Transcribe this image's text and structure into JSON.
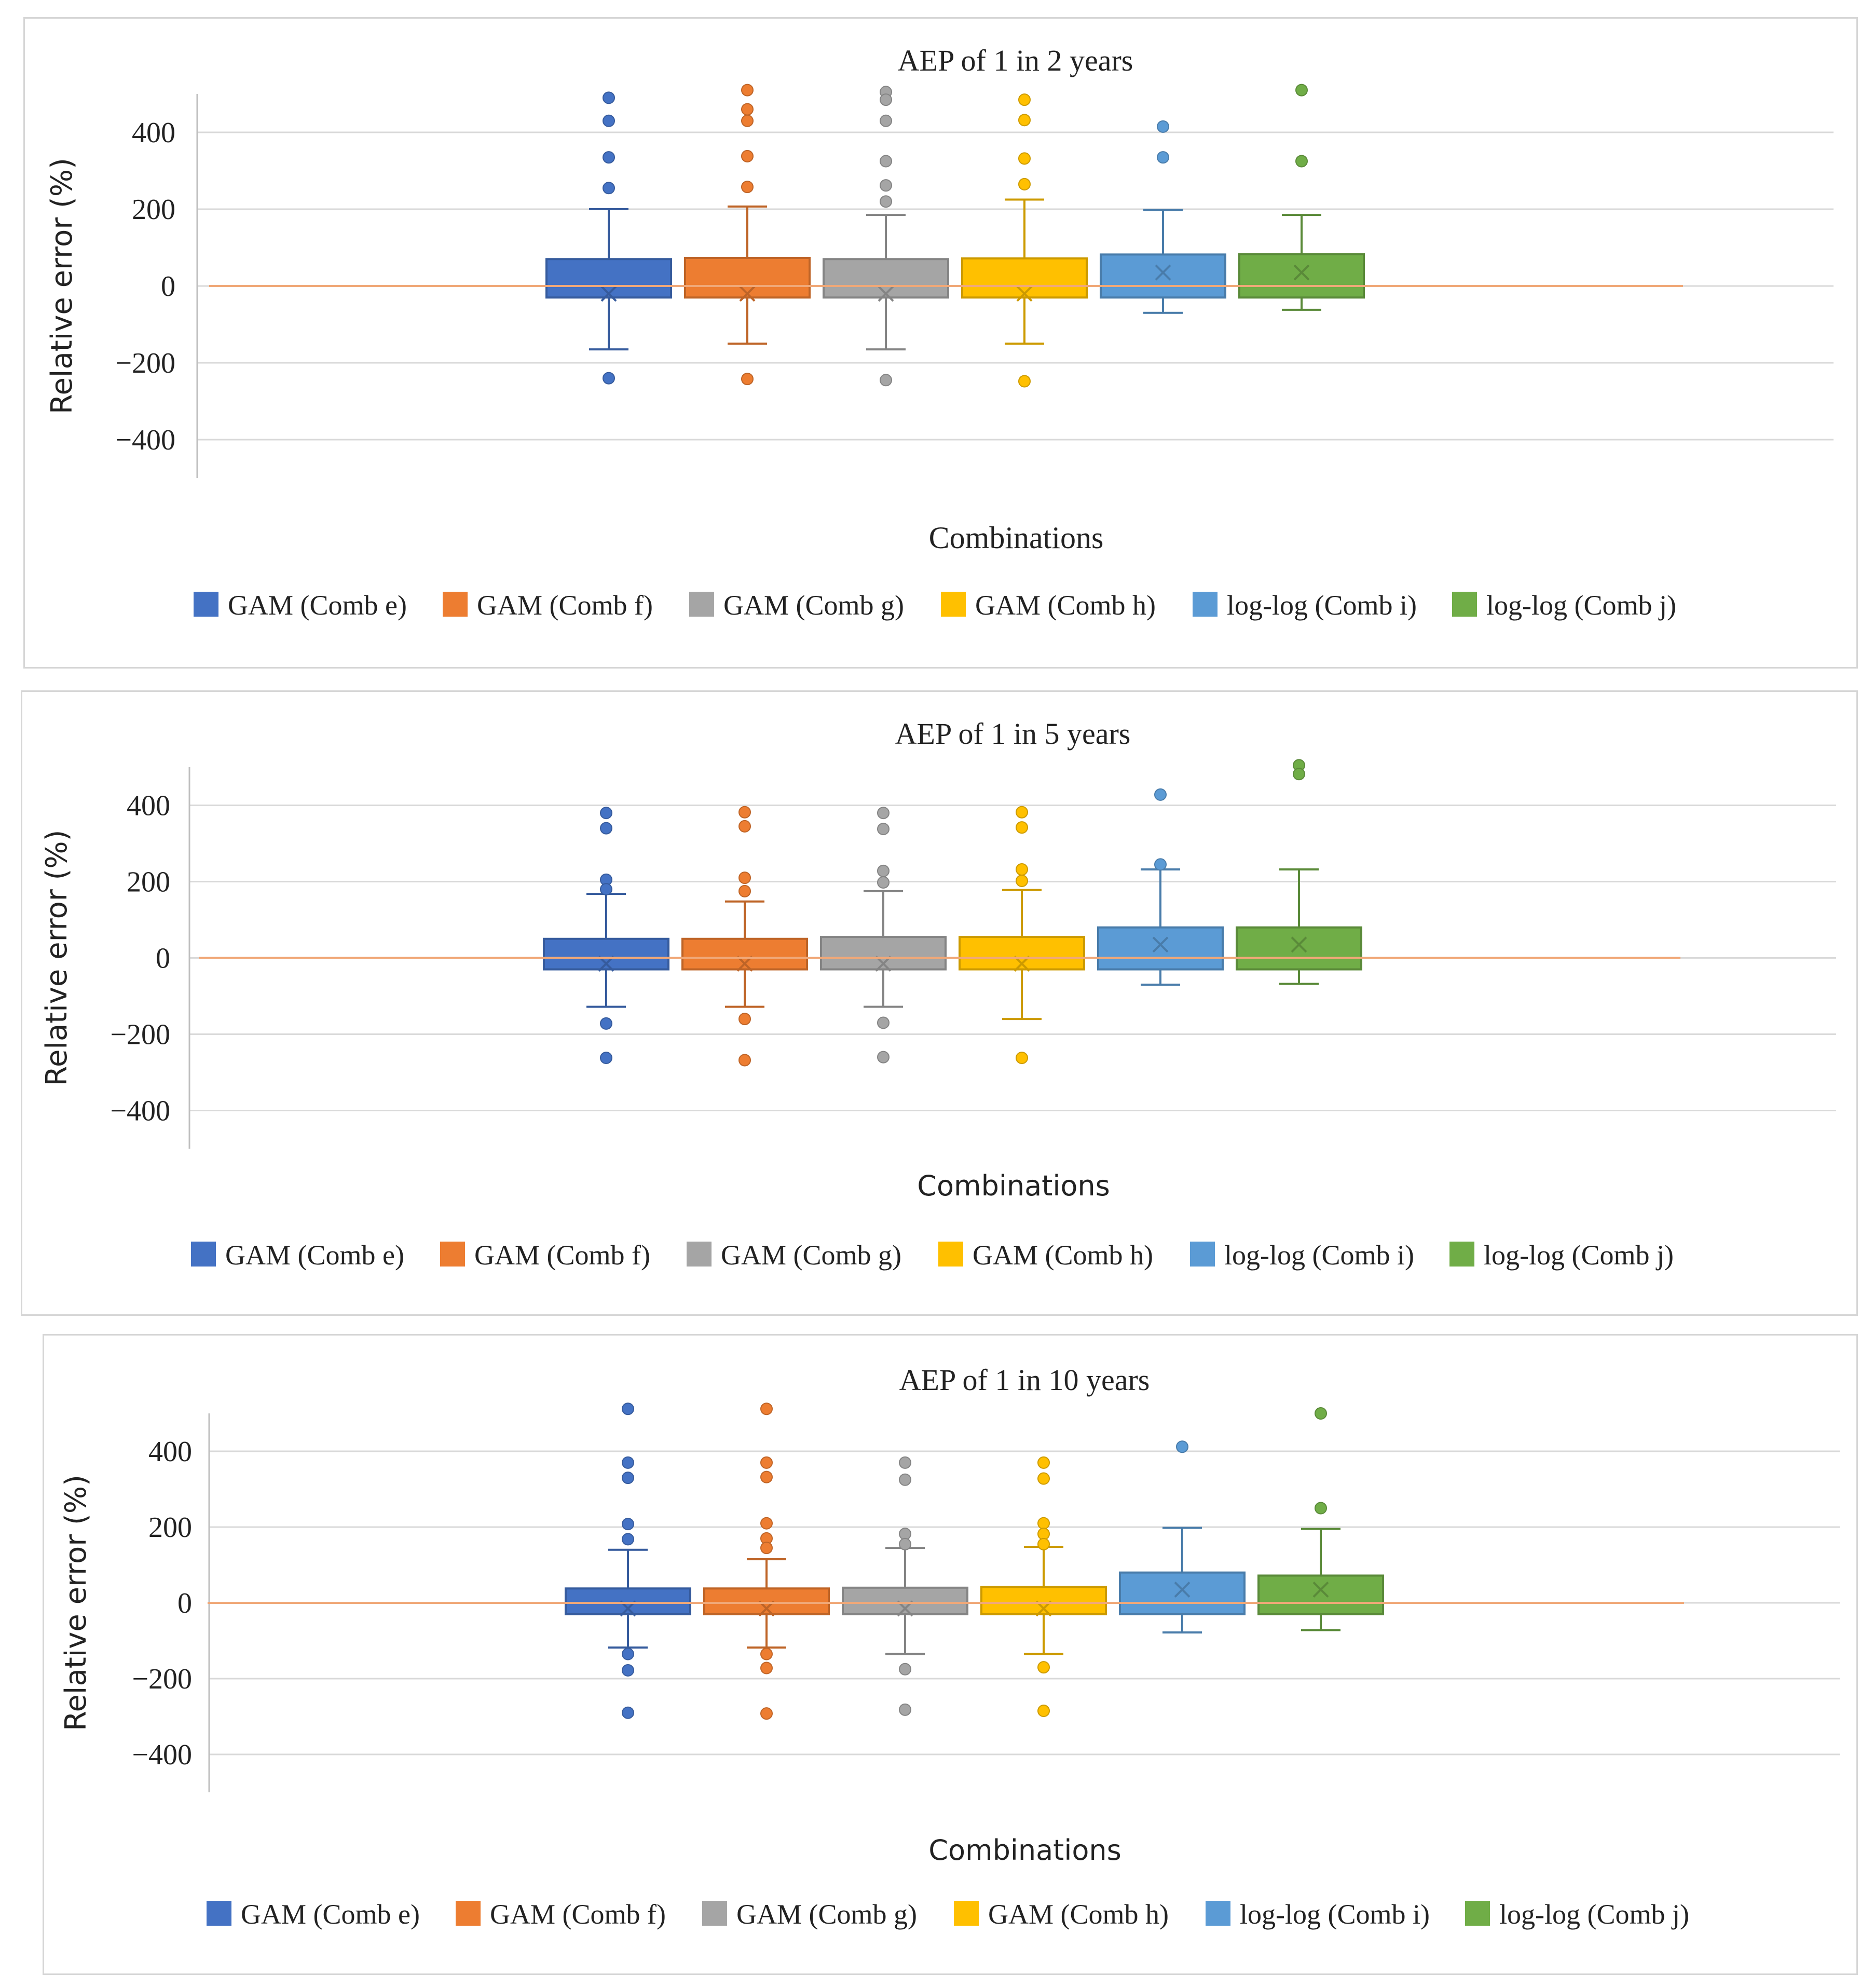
{
  "chart_data": [
    {
      "type": "box",
      "title": "AEP of 1 in 2 years",
      "xlabel": "Combinations",
      "ylabel": "Relative error (%)",
      "ylim": [
        -500,
        500
      ],
      "yticks": [
        400,
        200,
        0,
        -200,
        -400
      ],
      "ytick_labels": [
        "400",
        "200",
        "0",
        "−200",
        "−400"
      ],
      "legend_position": "bottom",
      "reference_line": 0,
      "series": [
        {
          "name": "GAM (Comb e)",
          "color": "#4472c4",
          "min": -165,
          "q1": -30,
          "median": 0,
          "q3": 70,
          "max": 200,
          "mean": -20,
          "outliers": [
            490,
            430,
            335,
            255,
            -240
          ]
        },
        {
          "name": "GAM (Comb f)",
          "color": "#ed7d31",
          "min": -150,
          "q1": -30,
          "median": 0,
          "q3": 73,
          "max": 207,
          "mean": -20,
          "outliers": [
            510,
            460,
            430,
            338,
            258,
            -242
          ]
        },
        {
          "name": "GAM (Comb g)",
          "color": "#a5a5a5",
          "min": -165,
          "q1": -30,
          "median": 0,
          "q3": 70,
          "max": 185,
          "mean": -20,
          "outliers": [
            505,
            485,
            430,
            325,
            262,
            220,
            -245
          ]
        },
        {
          "name": "GAM (Comb h)",
          "color": "#ffc000",
          "min": -150,
          "q1": -30,
          "median": 0,
          "q3": 72,
          "max": 225,
          "mean": -20,
          "outliers": [
            485,
            432,
            332,
            265,
            -248
          ]
        },
        {
          "name": "log-log (Comb i)",
          "color": "#5b9bd5",
          "min": -70,
          "q1": -30,
          "median": 0,
          "q3": 82,
          "max": 198,
          "mean": 35,
          "outliers": [
            415,
            335
          ]
        },
        {
          "name": "log-log (Comb j)",
          "color": "#70ad47",
          "min": -62,
          "q1": -30,
          "median": 0,
          "q3": 83,
          "max": 185,
          "mean": 35,
          "outliers": [
            510,
            325
          ]
        }
      ]
    },
    {
      "type": "box",
      "title": "AEP of 1 in 5 years",
      "xlabel": "Combinations",
      "ylabel": "Relative error (%)",
      "ylim": [
        -500,
        500
      ],
      "yticks": [
        400,
        200,
        0,
        -200,
        -400
      ],
      "ytick_labels": [
        "400",
        "200",
        "0",
        "−200",
        "−400"
      ],
      "legend_position": "bottom",
      "reference_line": 0,
      "series": [
        {
          "name": "GAM (Comb e)",
          "color": "#4472c4",
          "min": -128,
          "q1": -30,
          "median": 0,
          "q3": 50,
          "max": 168,
          "mean": -15,
          "outliers": [
            380,
            340,
            205,
            180,
            -172,
            -262
          ]
        },
        {
          "name": "GAM (Comb f)",
          "color": "#ed7d31",
          "min": -128,
          "q1": -30,
          "median": 0,
          "q3": 50,
          "max": 148,
          "mean": -15,
          "outliers": [
            382,
            345,
            210,
            175,
            -160,
            -268
          ]
        },
        {
          "name": "GAM (Comb g)",
          "color": "#a5a5a5",
          "min": -128,
          "q1": -30,
          "median": 0,
          "q3": 55,
          "max": 175,
          "mean": -15,
          "outliers": [
            380,
            338,
            228,
            198,
            -170,
            -260
          ]
        },
        {
          "name": "GAM (Comb h)",
          "color": "#ffc000",
          "min": -160,
          "q1": -30,
          "median": 0,
          "q3": 55,
          "max": 178,
          "mean": -15,
          "outliers": [
            382,
            342,
            232,
            202,
            -262
          ]
        },
        {
          "name": "log-log (Comb i)",
          "color": "#5b9bd5",
          "min": -70,
          "q1": -30,
          "median": 0,
          "q3": 80,
          "max": 232,
          "mean": 35,
          "outliers": [
            428,
            245
          ]
        },
        {
          "name": "log-log (Comb j)",
          "color": "#70ad47",
          "min": -68,
          "q1": -30,
          "median": 0,
          "q3": 80,
          "max": 232,
          "mean": 35,
          "outliers": [
            505,
            482
          ]
        }
      ]
    },
    {
      "type": "box",
      "title": "AEP of 1 in 10 years",
      "xlabel": "Combinations",
      "ylabel": "Relative error (%)",
      "ylim": [
        -500,
        500
      ],
      "yticks": [
        400,
        200,
        0,
        -200,
        -400
      ],
      "ytick_labels": [
        "400",
        "200",
        "0",
        "−200",
        "−400"
      ],
      "legend_position": "bottom",
      "reference_line": 0,
      "series": [
        {
          "name": "GAM (Comb e)",
          "color": "#4472c4",
          "min": -118,
          "q1": -30,
          "median": 0,
          "q3": 38,
          "max": 140,
          "mean": -15,
          "outliers": [
            512,
            370,
            330,
            208,
            168,
            -135,
            -178,
            -290
          ]
        },
        {
          "name": "GAM (Comb f)",
          "color": "#ed7d31",
          "min": -118,
          "q1": -30,
          "median": 0,
          "q3": 38,
          "max": 115,
          "mean": -15,
          "outliers": [
            512,
            370,
            332,
            210,
            170,
            145,
            -135,
            -172,
            -292
          ]
        },
        {
          "name": "GAM (Comb g)",
          "color": "#a5a5a5",
          "min": -135,
          "q1": -30,
          "median": 0,
          "q3": 40,
          "max": 145,
          "mean": -15,
          "outliers": [
            370,
            325,
            182,
            155,
            -175,
            -282
          ]
        },
        {
          "name": "GAM (Comb h)",
          "color": "#ffc000",
          "min": -135,
          "q1": -30,
          "median": 0,
          "q3": 42,
          "max": 148,
          "mean": -15,
          "outliers": [
            370,
            328,
            210,
            182,
            155,
            -170,
            -285
          ]
        },
        {
          "name": "log-log (Comb i)",
          "color": "#5b9bd5",
          "min": -78,
          "q1": -30,
          "median": 0,
          "q3": 80,
          "max": 198,
          "mean": 35,
          "outliers": [
            412
          ]
        },
        {
          "name": "log-log (Comb j)",
          "color": "#70ad47",
          "min": -72,
          "q1": -30,
          "median": 0,
          "q3": 72,
          "max": 195,
          "mean": 35,
          "outliers": [
            500,
            250
          ]
        }
      ]
    }
  ]
}
